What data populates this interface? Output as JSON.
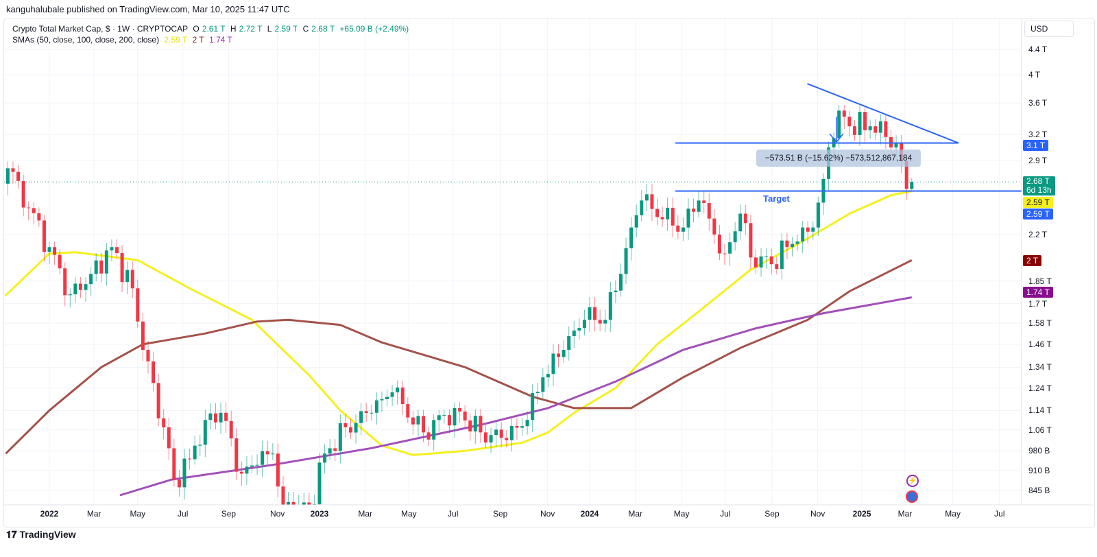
{
  "header": {
    "published": "kanguhalubale published on TradingView.com, Mar 10, 2025 11:47 UTC",
    "symbol": "Crypto Total Market Cap, $ · 1W · CRYPTOCAP",
    "o_label": "O",
    "o": "2.61 T",
    "h_label": "H",
    "h": "2.72 T",
    "l_label": "L",
    "l": "2.59 T",
    "c_label": "C",
    "c": "2.68 T",
    "change": "+65.09 B (+2.49%)",
    "sma_label": "SMAs (50, close, 100, close, 200, close)",
    "sma50": "2.59 T",
    "sma100": "2 T",
    "sma200": "1.74 T"
  },
  "currency": "USD",
  "footer": {
    "logo": "TradingView"
  },
  "annotations": {
    "measure": "−573.51 B (−15.62%) −573,512,867,184",
    "target": "Target",
    "tags": {
      "resistance": "3.1 T",
      "price": "2.68 T",
      "countdown": "6d 13h",
      "sma50": "2.59 T",
      "target": "2.59 T",
      "sma100": "2 T",
      "sma200": "1.74 T"
    }
  },
  "colors": {
    "up": "#089981",
    "down": "#f23645",
    "sma50": "#f5f01f",
    "sma100": "#a4524a",
    "sma200": "#a24fb8",
    "lines": "#2962ff"
  },
  "chart_data": {
    "type": "candlestick",
    "title": "Crypto Total Market Cap, $ · 1W · CRYPTOCAP",
    "scale": "log",
    "ylim": [
      0.8,
      4.6
    ],
    "y_unit": "T USD",
    "y_ticks": [
      "4.4 T",
      "4 T",
      "3.6 T",
      "3.2 T",
      "2.9 T",
      "2.2 T",
      "1.85 T",
      "1.7 T",
      "1.58 T",
      "1.46 T",
      "1.34 T",
      "1.24 T",
      "1.14 T",
      "1.06 T",
      "980 B",
      "910 B",
      "845 B"
    ],
    "y_tick_values": [
      4.4,
      4.0,
      3.6,
      3.2,
      2.9,
      2.2,
      1.85,
      1.7,
      1.58,
      1.46,
      1.34,
      1.24,
      1.14,
      1.06,
      0.98,
      0.91,
      0.845
    ],
    "x_unit": "weeks since 2022-01-01",
    "x_ticks": [
      {
        "label": "2022",
        "week": 0,
        "year": true
      },
      {
        "label": "Mar",
        "week": 8.6
      },
      {
        "label": "May",
        "week": 17
      },
      {
        "label": "Jul",
        "week": 25.7
      },
      {
        "label": "Sep",
        "week": 34.5
      },
      {
        "label": "Nov",
        "week": 43.9
      },
      {
        "label": "2023",
        "week": 52,
        "year": true
      },
      {
        "label": "Mar",
        "week": 60.8
      },
      {
        "label": "May",
        "week": 69.2
      },
      {
        "label": "Jul",
        "week": 77.7
      },
      {
        "label": "Sep",
        "week": 86.8
      },
      {
        "label": "Nov",
        "week": 95.9
      },
      {
        "label": "2024",
        "week": 104,
        "year": true
      },
      {
        "label": "Mar",
        "week": 112.8
      },
      {
        "label": "May",
        "week": 121.7
      },
      {
        "label": "Jul",
        "week": 130.1
      },
      {
        "label": "Sep",
        "week": 139.1
      },
      {
        "label": "Nov",
        "week": 147.9
      },
      {
        "label": "2025",
        "week": 156.4,
        "year": true
      },
      {
        "label": "Mar",
        "week": 164.7
      },
      {
        "label": "May",
        "week": 173.9
      },
      {
        "label": "Jul",
        "week": 182.9
      }
    ],
    "close_keypoints": [
      [
        -8,
        2.82
      ],
      [
        -4,
        2.43
      ],
      [
        0,
        2.1
      ],
      [
        4,
        1.76
      ],
      [
        8,
        1.9
      ],
      [
        12,
        2.1
      ],
      [
        16,
        1.8
      ],
      [
        18,
        1.43
      ],
      [
        22,
        1.07
      ],
      [
        24,
        0.88
      ],
      [
        27,
        0.95
      ],
      [
        30,
        1.1
      ],
      [
        33,
        1.13
      ],
      [
        37,
        0.9
      ],
      [
        40,
        0.93
      ],
      [
        43,
        0.97
      ],
      [
        45,
        0.8
      ],
      [
        50,
        0.79
      ],
      [
        53,
        0.97
      ],
      [
        57,
        1.07
      ],
      [
        62,
        1.13
      ],
      [
        66,
        1.22
      ],
      [
        72,
        1.05
      ],
      [
        78,
        1.15
      ],
      [
        83,
        1.05
      ],
      [
        88,
        1.02
      ],
      [
        92,
        1.1
      ],
      [
        95,
        1.29
      ],
      [
        99,
        1.43
      ],
      [
        103,
        1.6
      ],
      [
        107,
        1.6
      ],
      [
        110,
        1.9
      ],
      [
        112,
        2.26
      ],
      [
        114,
        2.5
      ],
      [
        118,
        2.33
      ],
      [
        122,
        2.26
      ],
      [
        125,
        2.5
      ],
      [
        130,
        2.05
      ],
      [
        133,
        2.38
      ],
      [
        135,
        2.02
      ],
      [
        139,
        1.97
      ],
      [
        142,
        2.1
      ],
      [
        145,
        2.26
      ],
      [
        147,
        2.26
      ],
      [
        149,
        2.71
      ],
      [
        150,
        3.05
      ],
      [
        152,
        3.5
      ],
      [
        154,
        3.3
      ],
      [
        158,
        3.3
      ],
      [
        161,
        3.17
      ],
      [
        163,
        3.1
      ],
      [
        165,
        2.61
      ]
    ],
    "last_candle": {
      "week": 166,
      "open": 2.61,
      "high": 2.72,
      "low": 2.59,
      "close": 2.68
    },
    "series": [
      {
        "name": "SMA 50",
        "points": [
          [
            -8.5,
            1.75
          ],
          [
            0,
            2.05
          ],
          [
            5,
            2.06
          ],
          [
            17,
            2.0
          ],
          [
            27,
            1.8
          ],
          [
            39,
            1.6
          ],
          [
            50,
            1.3
          ],
          [
            56,
            1.14
          ],
          [
            64,
            1.0
          ],
          [
            70,
            0.965
          ],
          [
            80,
            0.98
          ],
          [
            91,
            1.01
          ],
          [
            96,
            1.05
          ],
          [
            101,
            1.13
          ],
          [
            109,
            1.24
          ],
          [
            117,
            1.46
          ],
          [
            125,
            1.65
          ],
          [
            135,
            1.93
          ],
          [
            146,
            2.17
          ],
          [
            154,
            2.38
          ],
          [
            162,
            2.55
          ],
          [
            166,
            2.59
          ]
        ]
      },
      {
        "name": "SMA 100",
        "points": [
          [
            -8.4,
            0.97
          ],
          [
            0,
            1.14
          ],
          [
            10,
            1.34
          ],
          [
            18,
            1.46
          ],
          [
            30,
            1.52
          ],
          [
            40,
            1.59
          ],
          [
            46,
            1.6
          ],
          [
            56,
            1.57
          ],
          [
            64,
            1.47
          ],
          [
            80,
            1.34
          ],
          [
            93,
            1.2
          ],
          [
            101,
            1.15
          ],
          [
            112,
            1.15
          ],
          [
            122,
            1.29
          ],
          [
            133,
            1.44
          ],
          [
            146,
            1.6
          ],
          [
            154,
            1.78
          ],
          [
            166,
            2.0
          ]
        ]
      },
      {
        "name": "SMA 200",
        "points": [
          [
            13.6,
            0.83
          ],
          [
            23.5,
            0.88
          ],
          [
            43,
            0.93
          ],
          [
            62,
            0.99
          ],
          [
            83,
            1.08
          ],
          [
            96,
            1.15
          ],
          [
            109,
            1.27
          ],
          [
            122,
            1.43
          ],
          [
            136,
            1.55
          ],
          [
            149,
            1.64
          ],
          [
            166,
            1.74
          ]
        ]
      }
    ],
    "lines": {
      "trendline": [
        [
          145.9,
          3.87
        ],
        [
          175,
          3.1
        ]
      ],
      "resistance": {
        "value": 3.1,
        "from_week": 120.5,
        "to_week": 175
      },
      "target": {
        "value": 2.59,
        "from_week": 120.5
      },
      "last_price": 2.68
    }
  }
}
